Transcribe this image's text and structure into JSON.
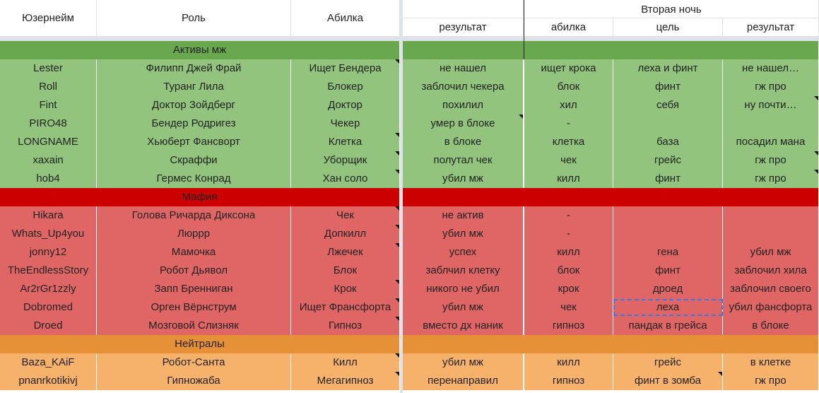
{
  "colors": {
    "header_bg": "#ffffff",
    "green_section": "#6aa84f",
    "green_row": "#93c47d",
    "red_section": "#cc0000",
    "red_row": "#e06666",
    "orange_section": "#e69138",
    "orange_row": "#f6b26b",
    "selection": "#3b78e7"
  },
  "header": {
    "username": "Юзернейм",
    "role": "Роль",
    "ability": "Абилка",
    "second_night": "Вторая ночь",
    "result1": "результат",
    "ability2": "абилка",
    "target": "цель",
    "result2": "результат"
  },
  "sections": [
    {
      "title": "Активы мж",
      "color_key": "green",
      "rows": [
        {
          "user": "Lester",
          "role": "Филипп Джей Фрай",
          "ability": "Ищет Бендера",
          "result1": "не нашел",
          "ability2": "ищет крока",
          "target": "леха и финт",
          "result2": "не нашел…"
        },
        {
          "user": "Roll",
          "role": "Туранг Лила",
          "ability": "Блокер",
          "result1": "заблочил чекера",
          "ability2": "блок",
          "target": "финт",
          "result2": "гж про"
        },
        {
          "user": "Fint",
          "role": "Доктор Зойдберг",
          "ability": "Доктор",
          "result1": "похилил",
          "ability2": "хил",
          "target": "себя",
          "result2": "ну почти…"
        },
        {
          "user": "PIRO48",
          "role": "Бендер Родригез",
          "ability": "Чекер",
          "result1": "умер в блоке",
          "ability2": "-",
          "target": "",
          "result2": ""
        },
        {
          "user": "LONGNAME",
          "role": "Хьюберт Фансворт",
          "ability": "Клетка",
          "result1": "в блоке",
          "ability2": "клетка",
          "target": "база",
          "result2": "посадил мана"
        },
        {
          "user": "xaxain",
          "role": "Скраффи",
          "ability": "Уборщик",
          "result1": "полутал чек",
          "ability2": "чек",
          "target": "грейс",
          "result2": "гж про"
        },
        {
          "user": "hob4",
          "role": "Гермес Конрад",
          "ability": "Хан соло",
          "result1": "убил мж",
          "ability2": "килл",
          "target": "финт",
          "result2": "гж про"
        }
      ]
    },
    {
      "title": "Мафия",
      "color_key": "red",
      "rows": [
        {
          "user": "Hikara",
          "role": "Голова Ричарда Диксона",
          "ability": "Чек",
          "result1": "не актив",
          "ability2": "-",
          "target": "",
          "result2": ""
        },
        {
          "user": "Whats_Up4you",
          "role": "Люррр",
          "ability": "Допкилл",
          "result1": "убил мж",
          "ability2": "-",
          "target": "",
          "result2": ""
        },
        {
          "user": "jonny12",
          "role": "Мамочка",
          "ability": "Лжечек",
          "result1": "успех",
          "ability2": "килл",
          "target": "гена",
          "result2": "убил мж"
        },
        {
          "user": "TheEndlessStory",
          "role": "Робот Дьявол",
          "ability": "Блок",
          "result1": "заблчил клетку",
          "ability2": "блок",
          "target": "финт",
          "result2": "заблочил хила"
        },
        {
          "user": "Ar2rGr1zzly",
          "role": "Запп Бренниган",
          "ability": "Крок",
          "result1": "никого не убил",
          "ability2": "крок",
          "target": "дроед",
          "result2": "заблочил своего"
        },
        {
          "user": "Dobromed",
          "role": "Орген Вёрнструм",
          "ability": "Ищет Франсфорта",
          "result1": "убил мж",
          "ability2": "чек",
          "target": "леха",
          "result2": "убил фансфорта"
        },
        {
          "user": "Droed",
          "role": "Мозговой Слизняк",
          "ability": "Гипноз",
          "result1": "вместо дх наник",
          "ability2": "гипноз",
          "target": "пандак в грейса",
          "result2": "в блоке"
        }
      ]
    },
    {
      "title": "Нейтралы",
      "color_key": "orange",
      "rows": [
        {
          "user": "Baza_KAiF",
          "role": "Робот-Санта",
          "ability": "Килл",
          "result1": "убил мж",
          "ability2": "килл",
          "target": "грейс",
          "result2": "в клетке"
        },
        {
          "user": "pnanrkotikivj",
          "role": "Гипножаба",
          "ability": "Мегагипноз",
          "result1": "перенаправил",
          "ability2": "гипноз",
          "target": "финт в зомба",
          "result2": "гж про"
        }
      ]
    }
  ]
}
